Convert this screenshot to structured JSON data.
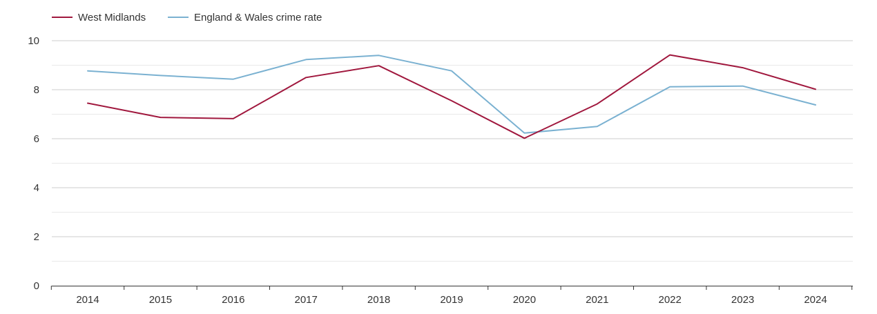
{
  "chart_data": {
    "type": "line",
    "title": "",
    "xlabel": "",
    "ylabel": "",
    "categories": [
      "2014",
      "2015",
      "2016",
      "2017",
      "2018",
      "2019",
      "2020",
      "2021",
      "2022",
      "2023",
      "2024"
    ],
    "ylim": [
      0,
      10
    ],
    "yticks": [
      "0",
      "2",
      "4",
      "6",
      "8",
      "10"
    ],
    "grid": true,
    "legend_position": "top-left",
    "series": [
      {
        "name": "West Midlands",
        "color": "#a0173d",
        "values": [
          7.45,
          6.87,
          6.82,
          8.5,
          8.98,
          7.55,
          6.02,
          7.42,
          9.42,
          8.9,
          8.02
        ]
      },
      {
        "name": "England & Wales crime rate",
        "color": "#7ab1d1",
        "values": [
          8.77,
          8.58,
          8.43,
          9.23,
          9.4,
          8.77,
          6.23,
          6.5,
          8.12,
          8.15,
          7.38
        ]
      }
    ]
  }
}
